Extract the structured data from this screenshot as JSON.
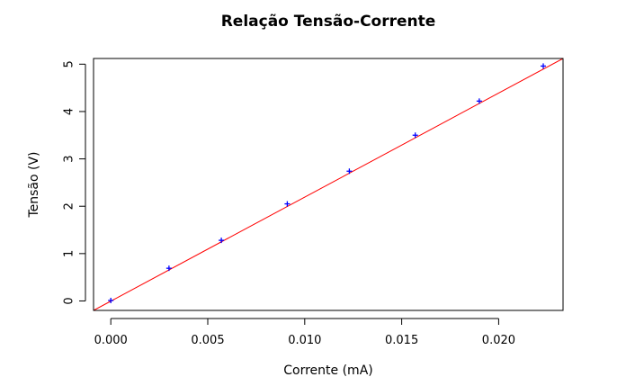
{
  "chart_data": {
    "type": "scatter",
    "title": "Relação Tensão-Corrente",
    "xlabel": "Corrente (mA)",
    "ylabel": "Tensão (V)",
    "xlim": [
      -0.00089,
      0.02332
    ],
    "ylim": [
      -0.2,
      5.12
    ],
    "x_ticks": [
      0.0,
      0.005,
      0.01,
      0.015,
      0.02
    ],
    "x_tick_labels": [
      "0.000",
      "0.005",
      "0.010",
      "0.015",
      "0.020"
    ],
    "y_ticks": [
      0,
      1,
      2,
      3,
      4,
      5
    ],
    "y_tick_labels": [
      "0",
      "1",
      "2",
      "3",
      "4",
      "5"
    ],
    "grid": false,
    "series": [
      {
        "type": "scatter",
        "marker": "+",
        "color": "#0000ff",
        "x": [
          0.0,
          0.003,
          0.0057,
          0.0091,
          0.0123,
          0.0157,
          0.019,
          0.0223
        ],
        "y": [
          0.01,
          0.69,
          1.28,
          2.05,
          2.74,
          3.5,
          4.22,
          4.96
        ]
      },
      {
        "type": "line",
        "color": "#ff0000",
        "x": [
          -0.00089,
          0.02332
        ],
        "y": [
          -0.2,
          5.12
        ]
      }
    ]
  }
}
